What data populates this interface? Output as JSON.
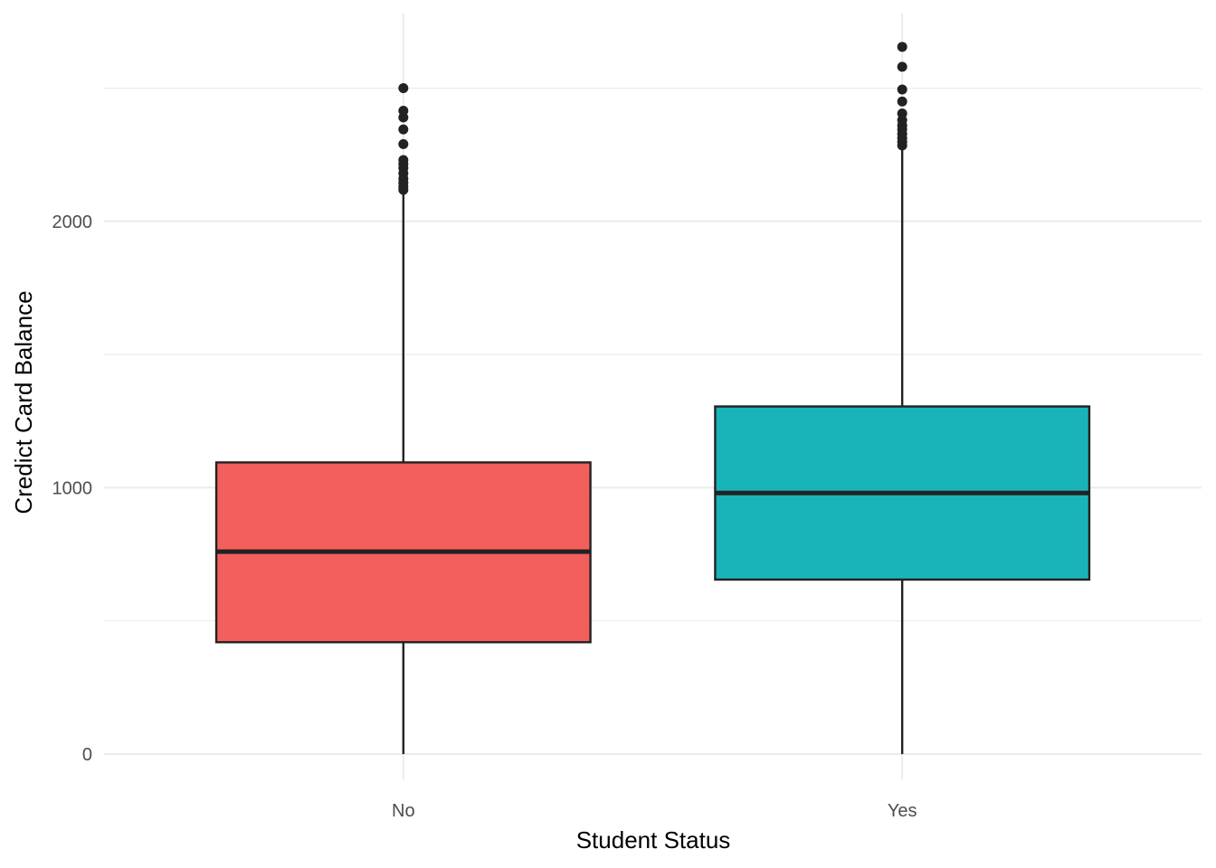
{
  "chart_data": {
    "type": "boxplot",
    "title": "",
    "xlabel": "Student Status",
    "ylabel": "Credict Card Balance",
    "categories": [
      "No",
      "Yes"
    ],
    "colors": [
      "#F25F5C",
      "#19B4B9"
    ],
    "ylim": [
      -95,
      2780
    ],
    "yticks": [
      0,
      1000,
      2000
    ],
    "ytick_labels": [
      "0",
      "1000",
      "2000"
    ],
    "y_minor_ticks": [
      500,
      1500,
      2500
    ],
    "grid": true,
    "legend": "none",
    "boxes": [
      {
        "category": "No",
        "min": 0,
        "q1": 420,
        "median": 760,
        "q3": 1095,
        "max": 2105,
        "outliers": [
          2118,
          2130,
          2145,
          2160,
          2180,
          2200,
          2215,
          2230,
          2290,
          2345,
          2390,
          2415,
          2500
        ]
      },
      {
        "category": "Yes",
        "min": 0,
        "q1": 655,
        "median": 980,
        "q3": 1305,
        "max": 2275,
        "outliers": [
          2285,
          2298,
          2312,
          2328,
          2345,
          2360,
          2380,
          2405,
          2450,
          2495,
          2580,
          2655
        ]
      }
    ]
  }
}
